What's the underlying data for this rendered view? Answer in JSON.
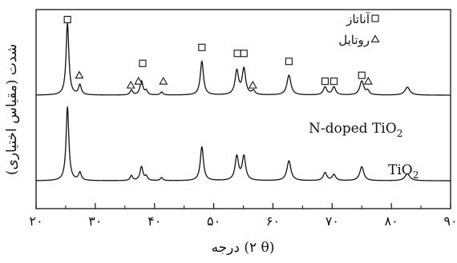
{
  "chart_data": {
    "type": "line",
    "xlabel": "درجه (۲ θ)",
    "ylabel": "شدت (مقیاس اختیاری)",
    "xlim": [
      20,
      90
    ],
    "x_ticks": [
      20,
      30,
      40,
      50,
      60,
      70,
      80,
      90
    ],
    "x_tick_labels": [
      "۲۰",
      "۳۰",
      "۴۰",
      "۵۰",
      "۶۰",
      "۷۰",
      "۸۰",
      "۹۰"
    ],
    "ylim": [
      0,
      1
    ],
    "grid": false,
    "legend": {
      "position": "top-right",
      "entries": [
        {
          "label": "آناتاز",
          "marker": "square"
        },
        {
          "label": "روتایل",
          "marker": "triangle"
        }
      ]
    },
    "series": [
      {
        "name": "N-doped TiO2",
        "label_main": "N-doped TiO",
        "label_sub": "2",
        "baseline": 0.57,
        "peaks": [
          {
            "x": 25.3,
            "h": 0.36,
            "w": 0.28
          },
          {
            "x": 27.4,
            "h": 0.05,
            "w": 0.28
          },
          {
            "x": 36.1,
            "h": 0.025,
            "w": 0.25
          },
          {
            "x": 37.8,
            "h": 0.07,
            "w": 0.3
          },
          {
            "x": 38.6,
            "h": 0.02,
            "w": 0.25
          },
          {
            "x": 41.2,
            "h": 0.015,
            "w": 0.25
          },
          {
            "x": 48.0,
            "h": 0.17,
            "w": 0.32
          },
          {
            "x": 53.9,
            "h": 0.12,
            "w": 0.35
          },
          {
            "x": 55.1,
            "h": 0.13,
            "w": 0.35
          },
          {
            "x": 56.7,
            "h": 0.02,
            "w": 0.3
          },
          {
            "x": 62.7,
            "h": 0.1,
            "w": 0.4
          },
          {
            "x": 68.8,
            "h": 0.04,
            "w": 0.35
          },
          {
            "x": 70.3,
            "h": 0.04,
            "w": 0.35
          },
          {
            "x": 75.0,
            "h": 0.07,
            "w": 0.4
          },
          {
            "x": 76.0,
            "h": 0.02,
            "w": 0.3
          },
          {
            "x": 82.7,
            "h": 0.04,
            "w": 0.5
          }
        ]
      },
      {
        "name": "TiO2",
        "label_main": "TiO",
        "label_sub": "2",
        "baseline": 0.14,
        "peaks": [
          {
            "x": 25.3,
            "h": 0.37,
            "w": 0.28
          },
          {
            "x": 27.4,
            "h": 0.04,
            "w": 0.28
          },
          {
            "x": 36.1,
            "h": 0.025,
            "w": 0.25
          },
          {
            "x": 37.8,
            "h": 0.07,
            "w": 0.3
          },
          {
            "x": 38.6,
            "h": 0.02,
            "w": 0.25
          },
          {
            "x": 41.2,
            "h": 0.015,
            "w": 0.25
          },
          {
            "x": 48.0,
            "h": 0.17,
            "w": 0.32
          },
          {
            "x": 53.9,
            "h": 0.12,
            "w": 0.35
          },
          {
            "x": 55.1,
            "h": 0.12,
            "w": 0.35
          },
          {
            "x": 62.7,
            "h": 0.1,
            "w": 0.4
          },
          {
            "x": 68.8,
            "h": 0.04,
            "w": 0.35
          },
          {
            "x": 70.3,
            "h": 0.03,
            "w": 0.35
          },
          {
            "x": 75.0,
            "h": 0.07,
            "w": 0.4
          },
          {
            "x": 82.7,
            "h": 0.035,
            "w": 0.5
          }
        ]
      }
    ],
    "markers": [
      {
        "type": "square",
        "x": 25.3,
        "y": 0.95
      },
      {
        "type": "triangle",
        "x": 27.3,
        "y": 0.67
      },
      {
        "type": "triangle",
        "x": 36.0,
        "y": 0.62
      },
      {
        "type": "triangle",
        "x": 37.3,
        "y": 0.64
      },
      {
        "type": "square",
        "x": 38.0,
        "y": 0.73
      },
      {
        "type": "triangle",
        "x": 41.5,
        "y": 0.64
      },
      {
        "type": "square",
        "x": 48.0,
        "y": 0.81
      },
      {
        "type": "square",
        "x": 54.0,
        "y": 0.78
      },
      {
        "type": "square",
        "x": 55.1,
        "y": 0.78
      },
      {
        "type": "triangle",
        "x": 56.6,
        "y": 0.62
      },
      {
        "type": "square",
        "x": 62.7,
        "y": 0.74
      },
      {
        "type": "square",
        "x": 68.8,
        "y": 0.64
      },
      {
        "type": "square",
        "x": 70.3,
        "y": 0.64
      },
      {
        "type": "square",
        "x": 75.0,
        "y": 0.67
      },
      {
        "type": "triangle",
        "x": 76.1,
        "y": 0.64
      }
    ]
  }
}
